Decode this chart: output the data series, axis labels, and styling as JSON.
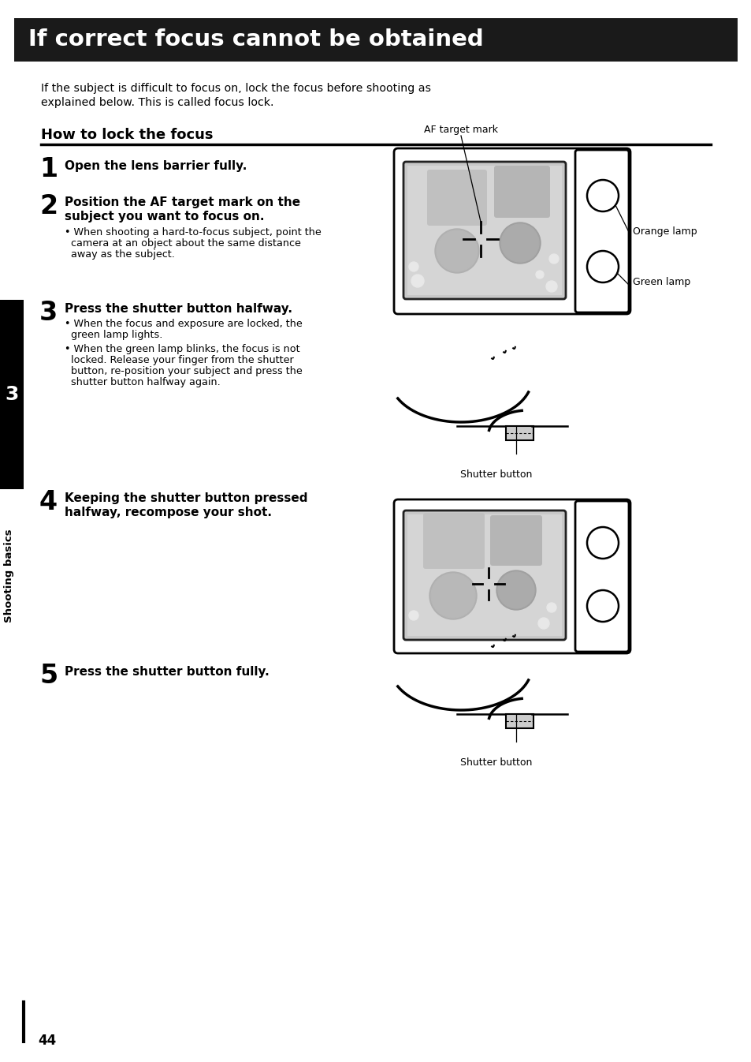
{
  "title": "If correct focus cannot be obtained",
  "title_bg": "#1a1a1a",
  "title_color": "#ffffff",
  "title_fontsize": 22,
  "page_bg": "#ffffff",
  "body_text_intro_line1": "If the subject is difficult to focus on, lock the focus before shooting as",
  "body_text_intro_line2": "explained below. This is called focus lock.",
  "section_title": "How to lock the focus",
  "step1_num": "1",
  "step1_bold": "Open the lens barrier fully.",
  "step2_num": "2",
  "step2_bold": "Position the AF target mark on the",
  "step2_bold2": "subject you want to focus on.",
  "step2_bullet": "• When shooting a hard-to-focus subject, point the",
  "step2_bullet2": "  camera at an object about the same distance",
  "step2_bullet3": "  away as the subject.",
  "step3_num": "3",
  "step3_bold": "Press the shutter button halfway.",
  "step3_bullet1": "• When the focus and exposure are locked, the",
  "step3_bullet1b": "  green lamp lights.",
  "step3_bullet2": "• When the green lamp blinks, the focus is not",
  "step3_bullet2b": "  locked. Release your finger from the shutter",
  "step3_bullet2c": "  button, re-position your subject and press the",
  "step3_bullet2d": "  shutter button halfway again.",
  "step4_num": "4",
  "step4_bold": "Keeping the shutter button pressed",
  "step4_bold2": "halfway, recompose your shot.",
  "step5_num": "5",
  "step5_bold": "Press the shutter button fully.",
  "sidebar_num": "3",
  "sidebar_text": "Shooting basics",
  "page_num": "44",
  "af_label": "AF target mark",
  "orange_label": "Orange lamp",
  "green_label": "Green lamp",
  "shutter_label1": "Shutter button",
  "shutter_label2": "Shutter button"
}
